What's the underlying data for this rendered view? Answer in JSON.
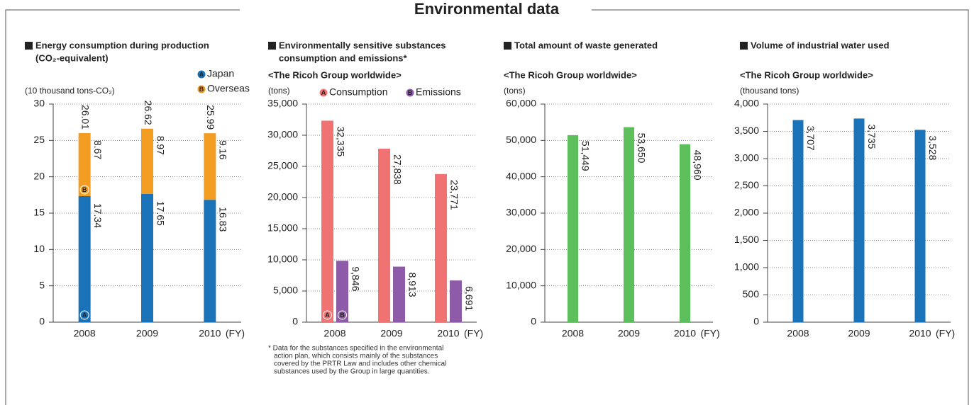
{
  "title": "Environmental data",
  "chart_data": [
    {
      "type": "stacked_bar",
      "title": [
        "Energy consumption during production",
        "(CO₂-equivalent)"
      ],
      "y_unit": "(10 thousand tons-CO₂)",
      "categories": [
        "2008",
        "2009",
        "2010"
      ],
      "x_unit": "(FY)",
      "series": [
        {
          "name": "Japan",
          "marker": "A",
          "color": "#1a73b9",
          "values": [
            17.34,
            17.65,
            16.83
          ]
        },
        {
          "name": "Overseas",
          "marker": "B",
          "color": "#f39c22",
          "values": [
            8.67,
            8.97,
            9.16
          ]
        }
      ],
      "totals": [
        26.01,
        26.62,
        25.99
      ],
      "ylim": [
        0,
        30
      ],
      "yticks": [
        0,
        5,
        10,
        15,
        20,
        25,
        30
      ],
      "grid": true
    },
    {
      "type": "grouped_bar",
      "title": [
        "Environmentally sensitive substances",
        "consumption and emissions*"
      ],
      "subtitle": "<The Ricoh Group worldwide>",
      "y_unit": "(tons)",
      "categories": [
        "2008",
        "2009",
        "2010"
      ],
      "x_unit": "(FY)",
      "series": [
        {
          "name": "Consumption",
          "marker": "A",
          "color": "#f07272",
          "values": [
            32335,
            27838,
            23771
          ],
          "value_labels": [
            "32,335",
            "27,838",
            "23,771"
          ]
        },
        {
          "name": "Emissions",
          "marker": "B",
          "color": "#8e5ba8",
          "values": [
            9846,
            8913,
            6691
          ],
          "value_labels": [
            "9,846",
            "8,913",
            "6,691"
          ]
        }
      ],
      "ylim": [
        0,
        35000
      ],
      "yticks": [
        0,
        {
          "value": 5000,
          "label": "5,000"
        },
        {
          "value": 10000,
          "label": "10,000"
        },
        {
          "value": 15000,
          "label": "15,000"
        },
        {
          "value": 20000,
          "label": "20,000"
        },
        {
          "value": 25000,
          "label": "25,000"
        },
        {
          "value": 30000,
          "label": "30,000"
        },
        {
          "value": 35000,
          "label": "35,000"
        }
      ],
      "grid": true,
      "footnote": [
        "* Data for the substances specified in the environmental",
        "action plan, which consists mainly of the substances",
        "covered by the PRTR Law and includes other chemical",
        "substances used by the Group in large quantities."
      ]
    },
    {
      "type": "bar",
      "title": [
        "Total amount of waste generated"
      ],
      "subtitle": "<The Ricoh Group worldwide>",
      "y_unit": "(tons)",
      "categories": [
        "2008",
        "2009",
        "2010"
      ],
      "x_unit": "(FY)",
      "values": [
        51449,
        53650,
        48960
      ],
      "value_labels": [
        "51,449",
        "53,650",
        "48,960"
      ],
      "color": "#5cbf5c",
      "ylim": [
        0,
        60000
      ],
      "yticks": [
        0,
        {
          "value": 10000,
          "label": "10,000"
        },
        {
          "value": 20000,
          "label": "20,000"
        },
        {
          "value": 30000,
          "label": "30,000"
        },
        {
          "value": 40000,
          "label": "40,000"
        },
        {
          "value": 50000,
          "label": "50,000"
        },
        {
          "value": 60000,
          "label": "60,000"
        }
      ],
      "grid": true
    },
    {
      "type": "bar",
      "title": [
        "Volume of industrial water used"
      ],
      "subtitle": "<The Ricoh Group worldwide>",
      "y_unit": "(thousand tons)",
      "categories": [
        "2008",
        "2009",
        "2010"
      ],
      "x_unit": "(FY)",
      "values": [
        3707,
        3735,
        3528
      ],
      "value_labels": [
        "3,707",
        "3,735",
        "3,528"
      ],
      "color": "#1a73b9",
      "ylim": [
        0,
        4000
      ],
      "yticks": [
        0,
        500,
        {
          "value": 1000,
          "label": "1,000"
        },
        {
          "value": 1500,
          "label": "1,500"
        },
        {
          "value": 2000,
          "label": "2,000"
        },
        {
          "value": 2500,
          "label": "2,500"
        },
        {
          "value": 3000,
          "label": "3,000"
        },
        {
          "value": 3500,
          "label": "3,500"
        },
        {
          "value": 4000,
          "label": "4,000"
        }
      ],
      "grid": true
    }
  ]
}
